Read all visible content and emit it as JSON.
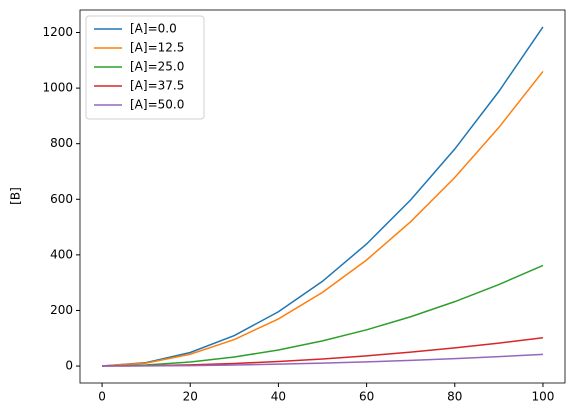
{
  "chart_data": {
    "type": "line",
    "ylabel": "[B]",
    "x": [
      0,
      10,
      20,
      30,
      40,
      50,
      60,
      70,
      80,
      90,
      100
    ],
    "series": [
      {
        "name": "[A]=0.0",
        "color": "#1f77b4",
        "values": [
          0,
          12.2,
          48.8,
          109.8,
          195.2,
          305,
          439.2,
          597.8,
          780.8,
          988.2,
          1220
        ]
      },
      {
        "name": "[A]=12.5",
        "color": "#ff7f0e",
        "values": [
          0,
          10.6,
          42.4,
          95.4,
          169.6,
          265,
          381.6,
          519.4,
          678.4,
          858.6,
          1060
        ]
      },
      {
        "name": "[A]=25.0",
        "color": "#2ca02c",
        "values": [
          0,
          3.6,
          14.5,
          32.6,
          57.9,
          90.5,
          130.3,
          177.4,
          231.7,
          293.2,
          362
        ]
      },
      {
        "name": "[A]=37.5",
        "color": "#d62728",
        "values": [
          0,
          1.0,
          4.1,
          9.2,
          16.3,
          25.5,
          36.7,
          50.0,
          65.3,
          82.6,
          102
        ]
      },
      {
        "name": "[A]=50.0",
        "color": "#9467bd",
        "values": [
          0,
          0.4,
          1.7,
          3.8,
          6.7,
          10.5,
          15.1,
          20.6,
          26.9,
          34.0,
          42
        ]
      }
    ],
    "xlim": [
      -5,
      105
    ],
    "xticks": [
      0,
      20,
      40,
      60,
      80,
      100
    ],
    "ylim": [
      -61,
      1281
    ],
    "yticks": [
      0,
      200,
      400,
      600,
      800,
      1000,
      1200
    ],
    "grid": false,
    "legend": "upper-left"
  }
}
